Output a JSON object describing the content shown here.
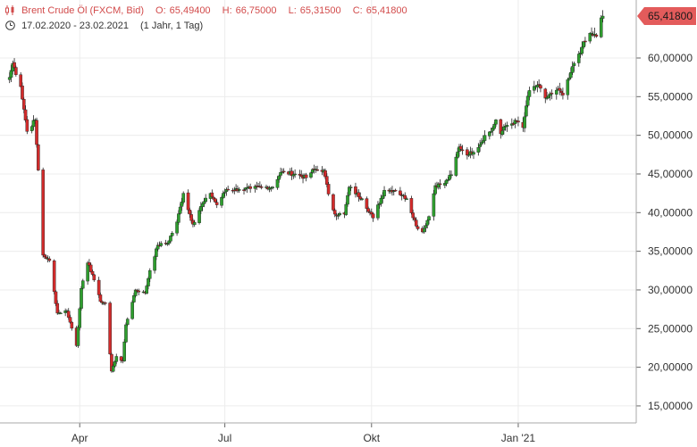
{
  "header": {
    "instrument": "Brent Crude Öl (FXCM, Bid)",
    "open_label": "O:",
    "open": "65,49400",
    "high_label": "H:",
    "high": "66,75000",
    "low_label": "L:",
    "low": "65,31500",
    "close_label": "C:",
    "close": "65,41800",
    "period": "17.02.2020 - 23.02.2021",
    "range": "(1 Jahr, 1 Tag)"
  },
  "colors": {
    "up": "#2e9e2e",
    "down": "#d22b2b",
    "price_tag": "#e35b5b",
    "grid": "#ececec",
    "axis_text": "#333333"
  },
  "chart_data": {
    "type": "candlestick",
    "title": "Brent Crude Öl (FXCM, Bid)",
    "x_ticks": [
      {
        "date": "2020-04-01",
        "label": "Apr"
      },
      {
        "date": "2020-07-01",
        "label": "Jul"
      },
      {
        "date": "2020-10-01",
        "label": "Okt"
      },
      {
        "date": "2021-01-01",
        "label": "Jan '21"
      }
    ],
    "y_ticks": [
      "15,00000",
      "20,00000",
      "25,00000",
      "30,00000",
      "35,00000",
      "40,00000",
      "45,00000",
      "50,00000",
      "55,00000",
      "60,00000"
    ],
    "y_tick_values": [
      15,
      20,
      25,
      30,
      35,
      40,
      45,
      50,
      55,
      60
    ],
    "ylim": [
      12.8,
      67.5
    ],
    "last_price": 65.418,
    "last_price_label": "65,41800",
    "series_anchors": [
      [
        "2020-02-17",
        57.5
      ],
      [
        "2020-02-19",
        59.3
      ],
      [
        "2020-02-24",
        56.3
      ],
      [
        "2020-02-28",
        50.5
      ],
      [
        "2020-03-04",
        52.0
      ],
      [
        "2020-03-06",
        45.5
      ],
      [
        "2020-03-09",
        34.5
      ],
      [
        "2020-03-13",
        33.8
      ],
      [
        "2020-03-18",
        27.0
      ],
      [
        "2020-03-24",
        27.3
      ],
      [
        "2020-03-30",
        22.8
      ],
      [
        "2020-04-02",
        30.2
      ],
      [
        "2020-04-06",
        33.5
      ],
      [
        "2020-04-09",
        32.0
      ],
      [
        "2020-04-14",
        28.5
      ],
      [
        "2020-04-17",
        28.3
      ],
      [
        "2020-04-21",
        19.5
      ],
      [
        "2020-04-24",
        21.4
      ],
      [
        "2020-04-28",
        20.8
      ],
      [
        "2020-04-30",
        25.5
      ],
      [
        "2020-05-06",
        30.0
      ],
      [
        "2020-05-12",
        29.6
      ],
      [
        "2020-05-15",
        32.5
      ],
      [
        "2020-05-20",
        35.8
      ],
      [
        "2020-05-26",
        36.0
      ],
      [
        "2020-06-01",
        38.8
      ],
      [
        "2020-06-05",
        42.5
      ],
      [
        "2020-06-11",
        38.5
      ],
      [
        "2020-06-16",
        40.8
      ],
      [
        "2020-06-22",
        42.5
      ],
      [
        "2020-06-26",
        41.0
      ],
      [
        "2020-07-02",
        43.0
      ],
      [
        "2020-07-10",
        43.0
      ],
      [
        "2020-07-17",
        43.1
      ],
      [
        "2020-07-24",
        43.3
      ],
      [
        "2020-07-31",
        43.3
      ],
      [
        "2020-08-05",
        45.2
      ],
      [
        "2020-08-14",
        45.0
      ],
      [
        "2020-08-21",
        44.5
      ],
      [
        "2020-08-26",
        45.6
      ],
      [
        "2020-09-01",
        45.5
      ],
      [
        "2020-09-04",
        42.4
      ],
      [
        "2020-09-08",
        39.8
      ],
      [
        "2020-09-14",
        39.8
      ],
      [
        "2020-09-17",
        43.3
      ],
      [
        "2020-09-25",
        41.8
      ],
      [
        "2020-10-02",
        39.3
      ],
      [
        "2020-10-09",
        42.9
      ],
      [
        "2020-10-16",
        42.9
      ],
      [
        "2020-10-23",
        41.8
      ],
      [
        "2020-10-30",
        37.9
      ],
      [
        "2020-11-02",
        37.5
      ],
      [
        "2020-11-06",
        39.5
      ],
      [
        "2020-11-10",
        43.5
      ],
      [
        "2020-11-16",
        43.8
      ],
      [
        "2020-11-20",
        44.9
      ],
      [
        "2020-11-25",
        48.5
      ],
      [
        "2020-12-01",
        47.5
      ],
      [
        "2020-12-08",
        48.8
      ],
      [
        "2020-12-11",
        50.0
      ],
      [
        "2020-12-15",
        50.5
      ],
      [
        "2020-12-18",
        52.0
      ],
      [
        "2020-12-21",
        50.2
      ],
      [
        "2020-12-24",
        51.2
      ],
      [
        "2020-12-31",
        51.8
      ],
      [
        "2021-01-04",
        51.0
      ],
      [
        "2021-01-06",
        53.8
      ],
      [
        "2021-01-08",
        55.8
      ],
      [
        "2021-01-13",
        56.5
      ],
      [
        "2021-01-18",
        54.8
      ],
      [
        "2021-01-22",
        55.4
      ],
      [
        "2021-01-27",
        55.8
      ],
      [
        "2021-01-29",
        55.2
      ],
      [
        "2021-02-02",
        57.4
      ],
      [
        "2021-02-05",
        59.3
      ],
      [
        "2021-02-10",
        61.4
      ],
      [
        "2021-02-15",
        63.2
      ],
      [
        "2021-02-19",
        62.8
      ],
      [
        "2021-02-22",
        65.2
      ],
      [
        "2021-02-23",
        65.418
      ]
    ]
  }
}
